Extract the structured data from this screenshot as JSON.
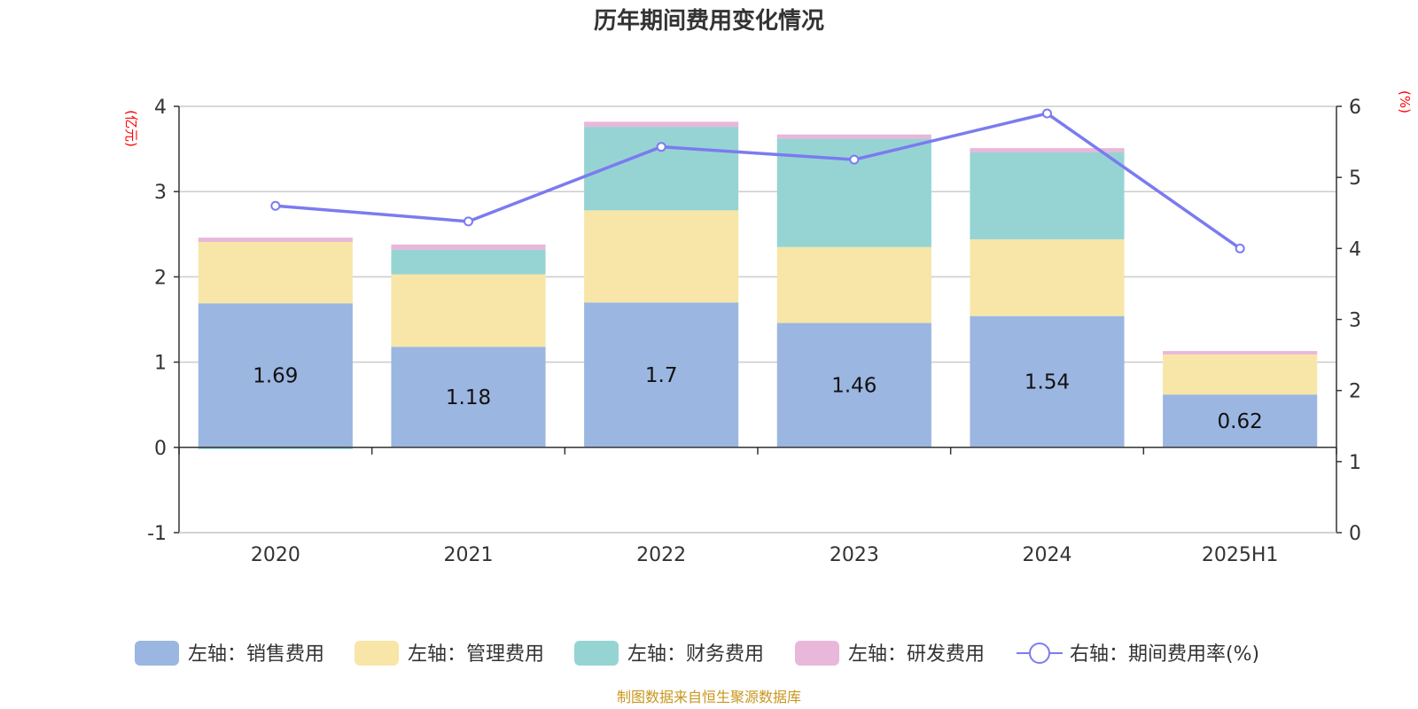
{
  "chart_data": {
    "type": "bar",
    "title": "历年期间费用变化情况",
    "categories": [
      "2020",
      "2021",
      "2022",
      "2023",
      "2024",
      "2025H1"
    ],
    "left_axis": {
      "unit_label": "(亿元)",
      "ylim": [
        -1,
        4
      ],
      "ticks": [
        "-1",
        "0",
        "1",
        "2",
        "3",
        "4"
      ]
    },
    "right_axis": {
      "unit_label": "(%)",
      "ylim": [
        0,
        6
      ],
      "ticks": [
        "0",
        "1",
        "2",
        "3",
        "4",
        "5",
        "6"
      ]
    },
    "series": [
      {
        "name": "左轴：销售费用",
        "type": "bar",
        "axis": "left",
        "color": "#9bb6e0",
        "values": [
          1.69,
          1.18,
          1.7,
          1.46,
          1.54,
          0.62
        ],
        "labels": [
          "1.69",
          "1.18",
          "1.7",
          "1.46",
          "1.54",
          "0.62"
        ]
      },
      {
        "name": "左轴：管理费用",
        "type": "bar",
        "axis": "left",
        "color": "#f7e6a7",
        "values": [
          0.72,
          0.85,
          1.08,
          0.89,
          0.9,
          0.47
        ]
      },
      {
        "name": "左轴：财务费用",
        "type": "bar",
        "axis": "left",
        "color": "#96d4d4",
        "values": [
          -0.02,
          0.29,
          0.98,
          1.27,
          1.02,
          0.0
        ]
      },
      {
        "name": "左轴：研发费用",
        "type": "bar",
        "axis": "left",
        "color": "#e8b7da",
        "values": [
          0.05,
          0.06,
          0.06,
          0.05,
          0.05,
          0.04
        ]
      },
      {
        "name": "右轴：期间费用率(%)",
        "type": "line",
        "axis": "right",
        "color": "#7b7bef",
        "values": [
          4.6,
          4.38,
          5.43,
          5.25,
          5.9,
          4.0
        ]
      }
    ],
    "grid": true,
    "legend_position": "bottom"
  },
  "footer": {
    "source": "制图数据来自恒生聚源数据库"
  }
}
